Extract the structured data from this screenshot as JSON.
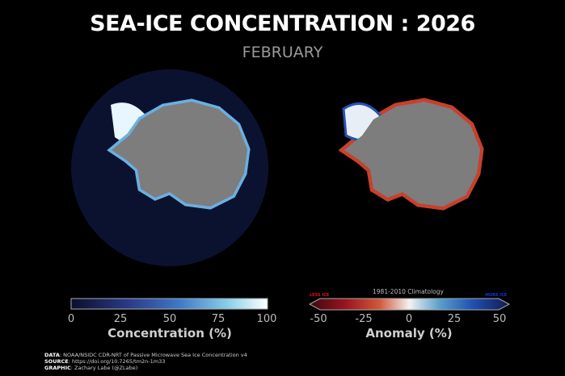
{
  "title": "SEA-ICE CONCENTRATION : 2026",
  "subtitle": "FEBRUARY",
  "left_colorbar": {
    "ticks": [
      "0",
      "25",
      "50",
      "75",
      "100"
    ],
    "label": "Concentration (%)",
    "range": [
      0,
      100
    ],
    "colors": [
      "#0a0f2a",
      "#2b3c8a",
      "#3f78c8",
      "#8ad0ea",
      "#ffffff"
    ]
  },
  "right_colorbar": {
    "ticks": [
      "-50",
      "-25",
      "0",
      "25",
      "50"
    ],
    "label": "Anomaly (%)",
    "range": [
      -50,
      50
    ],
    "climatology": "1981-2010 Climatology",
    "less": "LESS ICE",
    "more": "MORE ICE",
    "less_color": "#e0101a",
    "more_color": "#1a2ee0",
    "colors": [
      "#3a0a10",
      "#9a1420",
      "#d2583a",
      "#f2f2f2",
      "#5aa0cc",
      "#1f4fb0",
      "#141a50"
    ]
  },
  "footer": {
    "data_label": "DATA",
    "data": ": NOAA/NSIDC CDR-NRT of Passive Microwave Sea Ice Concentration v4",
    "source_label": "SOURCE",
    "source": ": https://doi.org/10.7265/tm2n-1m33",
    "graphic_label": "GRAPHIC",
    "graphic": ": Zachary Labe (@ZLabe)"
  }
}
